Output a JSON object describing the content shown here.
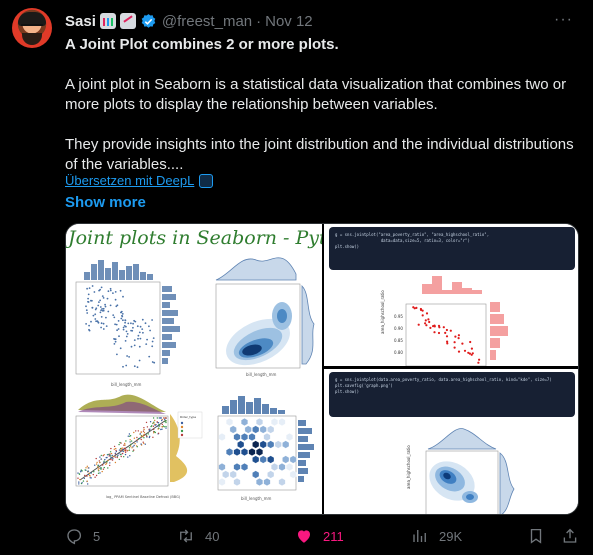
{
  "tweet": {
    "author_name": "Sasi",
    "author_emojis": [
      "bar-chart-emoji",
      "chart-increasing-emoji"
    ],
    "handle": "@freest_man",
    "separator": "·",
    "date": "Nov 12",
    "more_glyph": "···",
    "title": "A Joint Plot combines 2 or more plots.",
    "paragraph_1": "A joint plot in Seaborn is a statistical data visualization that combines two or more plots to display the relationship between variables.",
    "paragraph_2": "They provide insights into the joint distribution and the individual distributions of the variables....",
    "translate_label": "Übersetzen mit DeepL",
    "show_more": "Show more"
  },
  "media": {
    "left_panel_title": "Joint plots in Seaborn - Pytho",
    "code_top": "g = sns.jointplot(\"area_poverty_ratio\", \"area_highschool_ratio\",\n                   data=data,size=5, ratio=3, color=\"r\")\nplt.show()",
    "code_bottom": "g = sns.jointplot(data.area_poverty_ratio, data.area_highschool_ratio, kind=\"kde\", size=7)\nplt.savefig('graph.png')\nplt.show()"
  },
  "actions": {
    "reply_count": "5",
    "retweet_count": "40",
    "like_count": "211",
    "view_count": "29K"
  },
  "colors": {
    "background": "#000000",
    "text": "#e7e9ea",
    "muted": "#71767b",
    "link": "#1d9bf0",
    "like": "#f91880"
  }
}
